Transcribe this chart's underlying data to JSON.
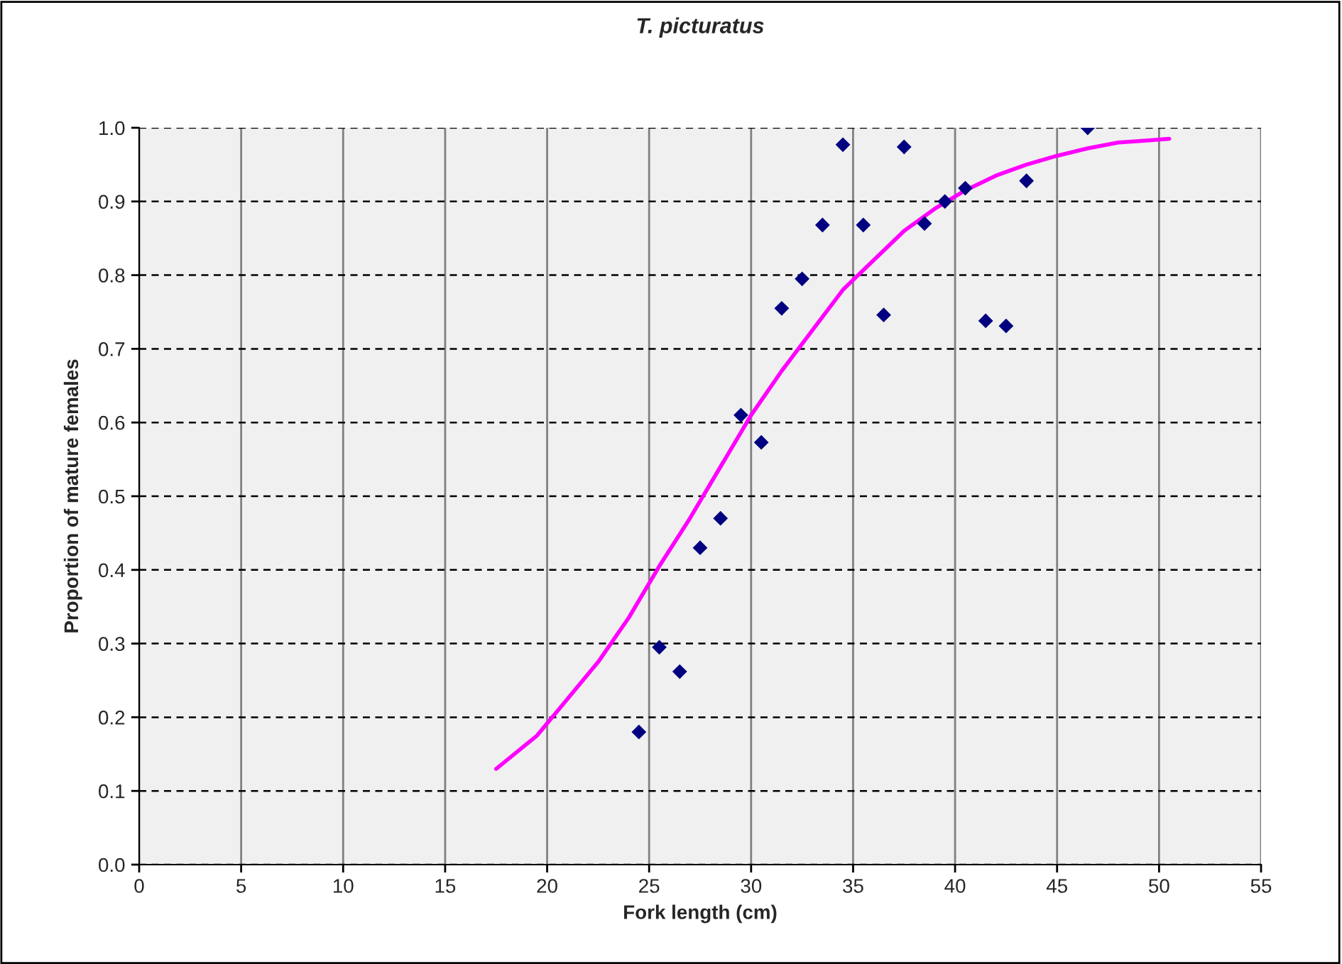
{
  "chart_data": {
    "type": "scatter",
    "title": "T. picturatus",
    "xlabel": "Fork length (cm)",
    "ylabel": "Proportion of mature females",
    "xlim": [
      0,
      55
    ],
    "xticks": [
      0,
      5,
      10,
      15,
      20,
      25,
      30,
      35,
      40,
      45,
      50,
      55
    ],
    "ylim": [
      0,
      1.0
    ],
    "yticks": [
      {
        "value": 0,
        "label": "0.0"
      },
      {
        "value": 0.1,
        "label": "0.1"
      },
      {
        "value": 0.2,
        "label": "0.2"
      },
      {
        "value": 0.3,
        "label": "0.3"
      },
      {
        "value": 0.4,
        "label": "0.4"
      },
      {
        "value": 0.5,
        "label": "0.5"
      },
      {
        "value": 0.6,
        "label": "0.6"
      },
      {
        "value": 0.7,
        "label": "0.7"
      },
      {
        "value": 0.8,
        "label": "0.8"
      },
      {
        "value": 0.9,
        "label": "0.9"
      },
      {
        "value": 1.0,
        "label": "1.0"
      }
    ],
    "grid": true,
    "legend": false,
    "series": [
      {
        "marker": "diamond",
        "color": "#000080",
        "x": [
          24.5,
          25.5,
          26.5,
          27.5,
          28.5,
          29.5,
          30.5,
          31.5,
          32.5,
          33.5,
          34.5,
          35.5,
          36.5,
          37.5,
          38.5,
          39.5,
          40.5,
          41.5,
          42.5,
          43.5,
          46.5
        ],
        "values": [
          0.18,
          0.295,
          0.262,
          0.43,
          0.47,
          0.61,
          0.573,
          0.755,
          0.795,
          0.868,
          0.977,
          0.868,
          0.746,
          0.974,
          0.87,
          0.9,
          0.918,
          0.738,
          0.731,
          0.928,
          1.0
        ]
      },
      {
        "type": "line",
        "marker": "none",
        "line_style": "solid",
        "color": "#ff00ff",
        "x": [
          17.5,
          19.5,
          21,
          22.5,
          24,
          25.5,
          27,
          28.5,
          30,
          31.5,
          33,
          34.5,
          36,
          37.5,
          39,
          40.5,
          42,
          43.5,
          45,
          46.5,
          48,
          49.5,
          50.5
        ],
        "values": [
          0.13,
          0.175,
          0.225,
          0.275,
          0.335,
          0.405,
          0.47,
          0.54,
          0.61,
          0.67,
          0.725,
          0.78,
          0.82,
          0.86,
          0.89,
          0.915,
          0.935,
          0.95,
          0.962,
          0.972,
          0.98,
          0.983,
          0.985
        ]
      }
    ]
  }
}
